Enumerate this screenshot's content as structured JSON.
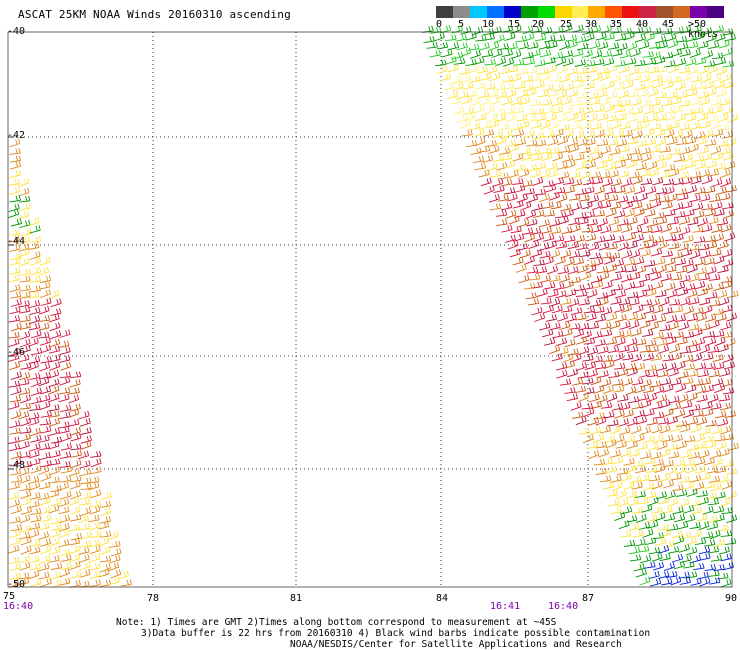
{
  "title": "ASCAT 25KM NOAA Winds 20160310 ascending",
  "legend": {
    "labels": [
      "0",
      "5",
      "10",
      "15",
      "20",
      "25",
      "30",
      "35",
      "40",
      "45",
      ">50 knots"
    ],
    "colors": [
      "#404040",
      "#8c8c8c",
      "#00c8ff",
      "#0070ff",
      "#0000c8",
      "#00a000",
      "#00dd00",
      "#ffd700",
      "#ffee55",
      "#ffaa00",
      "#ff5500",
      "#ee1111",
      "#cc2244",
      "#a0522d",
      "#d2691e",
      "#7a00aa",
      "#4b0082"
    ]
  },
  "y_ticks": [
    "-40",
    "-42",
    "-44",
    "-46",
    "-48",
    "-50"
  ],
  "x_ticks": [
    "75",
    "78",
    "81",
    "84",
    "87",
    "90"
  ],
  "times": [
    "16:40",
    "16:41",
    "16:40"
  ],
  "notes": {
    "line1": "Note: 1) Times are GMT 2)Times along bottom correspond to measurement at ~45S",
    "line2": "3)Data buffer is 22 hrs from 20160310 4) Black wind barbs indicate possible contamination",
    "line3": "NOAA/NESDIS/Center for Satellite Applications and Research"
  },
  "swath_colors": {
    "green": "#009900",
    "lightgreen": "#22cc22",
    "yellow": "#ffe23a",
    "paleyellow": "#fff07a",
    "orange": "#e08a1e",
    "darkorange": "#cc5a10",
    "red": "#d4143c",
    "crimson": "#b8103a",
    "blue": "#0022dd",
    "brown": "#a06020"
  }
}
